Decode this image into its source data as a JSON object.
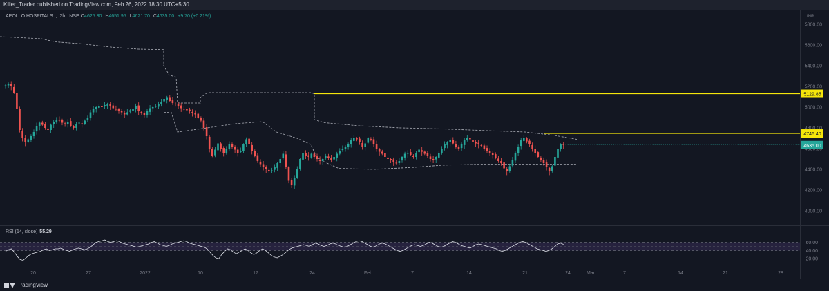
{
  "header": {
    "publisher_line": "Killer_Trader published on TradingView.com, Feb 26, 2022 18:30 UTC+5:30"
  },
  "legend": {
    "symbol": "APOLLO HOSPITALS..",
    "interval": "2h",
    "exchange": "NSE",
    "open_label": "O",
    "open_value": "4625.30",
    "high_label": "H",
    "high_value": "4651.95",
    "low_label": "L",
    "low_value": "4621.70",
    "close_label": "C",
    "close_value": "4635.00",
    "change": "+9.70 (+0.21%)"
  },
  "rsi": {
    "label": "RSI (14, close)",
    "value": "55.29"
  },
  "footer": {
    "brand": "TradingView"
  },
  "colors": {
    "background": "#131722",
    "up": "#26a69a",
    "down": "#ef5350",
    "level_line": "#f5e50b",
    "rsi_band": "#7e57c2",
    "price_tag": "#26a69a"
  },
  "chart_data": [
    {
      "type": "candlestick",
      "title": "APOLLO HOSPITALS.., 2h, NSE",
      "currency": "INR",
      "ylim": [
        3860,
        5940
      ],
      "y_ticks": [
        "4000.00",
        "4200.00",
        "4400.00",
        "4600.00",
        "4800.00",
        "5000.00",
        "5200.00",
        "5400.00",
        "5600.00",
        "5800.00"
      ],
      "x_ticks": [
        "20",
        "27",
        "2022",
        "10",
        "17",
        "24",
        "Feb",
        "7",
        "14",
        "21",
        "24",
        "Mar",
        "7",
        "14",
        "21",
        "28"
      ],
      "price_labels": [
        "5129.85",
        "4746.40",
        "4635.00"
      ],
      "horizontal_levels": [
        {
          "value": 5129.85,
          "label": "5129.85",
          "from": "Jan 25",
          "to": "right edge"
        },
        {
          "value": 4746.4,
          "label": "4746.40",
          "from": "Feb 22",
          "to": "right edge"
        }
      ],
      "last_price": 4635.0,
      "close_series": [
        5210,
        5220,
        5200,
        5140,
        4980,
        4780,
        4700,
        4660,
        4690,
        4720,
        4760,
        4820,
        4850,
        4830,
        4800,
        4780,
        4830,
        4860,
        4880,
        4870,
        4850,
        4840,
        4860,
        4820,
        4800,
        4840,
        4850,
        4840,
        4870,
        4900,
        4950,
        4980,
        5000,
        5010,
        5000,
        5020,
        5030,
        5010,
        4990,
        4980,
        4960,
        4950,
        4930,
        4950,
        4970,
        4980,
        5010,
        4960,
        4940,
        4920,
        4960,
        4990,
        5000,
        5010,
        5030,
        5050,
        5080,
        5090,
        5060,
        5040,
        5030,
        5010,
        4990,
        4980,
        4970,
        4960,
        4940,
        4930,
        4900,
        4870,
        4800,
        4720,
        4600,
        4530,
        4590,
        4650,
        4600,
        4560,
        4600,
        4640,
        4620,
        4590,
        4560,
        4580,
        4640,
        4690,
        4640,
        4580,
        4530,
        4480,
        4450,
        4420,
        4400,
        4380,
        4390,
        4420,
        4460,
        4500,
        4550,
        4420,
        4290,
        4250,
        4320,
        4400,
        4500,
        4560,
        4530,
        4520,
        4550,
        4520,
        4500,
        4480,
        4500,
        4530,
        4510,
        4490,
        4520,
        4550,
        4580,
        4600,
        4620,
        4640,
        4680,
        4700,
        4690,
        4660,
        4620,
        4650,
        4700,
        4690,
        4640,
        4600,
        4570,
        4550,
        4520,
        4500,
        4490,
        4470,
        4460,
        4480,
        4520,
        4550,
        4560,
        4540,
        4520,
        4560,
        4590,
        4570,
        4550,
        4530,
        4500,
        4490,
        4520,
        4560,
        4600,
        4640,
        4660,
        4680,
        4650,
        4620,
        4600,
        4640,
        4680,
        4700,
        4690,
        4660,
        4650,
        4640,
        4630,
        4600,
        4580,
        4560,
        4540,
        4510,
        4480,
        4460,
        4410,
        4380,
        4430,
        4490,
        4560,
        4620,
        4680,
        4700,
        4670,
        4640,
        4600,
        4560,
        4520,
        4490,
        4460,
        4420,
        4380,
        4430,
        4520,
        4600,
        4640,
        4635
      ],
      "upper_envelope": [
        [
          0,
          5680
        ],
        [
          60,
          5660
        ],
        [
          80,
          5630
        ],
        [
          120,
          5610
        ],
        [
          160,
          5580
        ],
        [
          200,
          5560
        ],
        [
          237,
          5555
        ],
        [
          237,
          5400
        ],
        [
          245,
          5310
        ],
        [
          255,
          5290
        ],
        [
          257,
          5040
        ],
        [
          290,
          5040
        ],
        [
          290,
          5090
        ],
        [
          300,
          5140
        ],
        [
          450,
          5140
        ],
        [
          455,
          5130
        ],
        [
          455,
          4880
        ],
        [
          470,
          4850
        ],
        [
          520,
          4820
        ],
        [
          580,
          4800
        ],
        [
          640,
          4790
        ],
        [
          700,
          4775
        ],
        [
          760,
          4760
        ],
        [
          800,
          4730
        ],
        [
          835,
          4690
        ]
      ],
      "lower_envelope": [
        [
          237,
          4950
        ],
        [
          248,
          4950
        ],
        [
          257,
          4760
        ],
        [
          300,
          4800
        ],
        [
          340,
          4840
        ],
        [
          380,
          4860
        ],
        [
          400,
          4760
        ],
        [
          430,
          4700
        ],
        [
          450,
          4640
        ],
        [
          458,
          4520
        ],
        [
          470,
          4470
        ],
        [
          490,
          4410
        ],
        [
          540,
          4400
        ],
        [
          600,
          4420
        ],
        [
          640,
          4440
        ],
        [
          700,
          4450
        ],
        [
          760,
          4450
        ],
        [
          800,
          4450
        ],
        [
          835,
          4450
        ]
      ]
    },
    {
      "type": "line",
      "title": "RSI (14, close)",
      "ylim": [
        0,
        100
      ],
      "y_ticks": [
        "20.00",
        "40.00",
        "60.00"
      ],
      "band": [
        40,
        60
      ],
      "band_midline": 50,
      "last_value": 55.29,
      "series": [
        38,
        42,
        44,
        36,
        26,
        18,
        16,
        22,
        28,
        32,
        34,
        36,
        38,
        42,
        44,
        40,
        42,
        44,
        44,
        46,
        42,
        40,
        38,
        42,
        44,
        46,
        44,
        42,
        44,
        48,
        54,
        60,
        62,
        64,
        66,
        62,
        60,
        62,
        64,
        62,
        58,
        56,
        54,
        52,
        50,
        48,
        50,
        52,
        54,
        56,
        60,
        62,
        58,
        54,
        52,
        50,
        52,
        56,
        58,
        60,
        62,
        64,
        62,
        58,
        56,
        54,
        52,
        50,
        48,
        44,
        36,
        28,
        22,
        20,
        30,
        38,
        44,
        42,
        36,
        32,
        36,
        40,
        44,
        40,
        34,
        30,
        34,
        40,
        44,
        40,
        34,
        28,
        24,
        22,
        26,
        30,
        36,
        42,
        46,
        48,
        50,
        52,
        54,
        52,
        50,
        54,
        58,
        56,
        52,
        50,
        52,
        56,
        58,
        56,
        52,
        50,
        48,
        50,
        54,
        58,
        62,
        64,
        62,
        58,
        54,
        50,
        48,
        52,
        56,
        58,
        56,
        52,
        48,
        44,
        40,
        38,
        40,
        44,
        48,
        52,
        54,
        52,
        50,
        52,
        56,
        60,
        58,
        54,
        50,
        48,
        50,
        54,
        58,
        62,
        60,
        56,
        52,
        50,
        48,
        46,
        50,
        54,
        56,
        54,
        52,
        50,
        48,
        46,
        44,
        40,
        38,
        40,
        44,
        48,
        52,
        56,
        60,
        62,
        60,
        56,
        52,
        48,
        44,
        42,
        40,
        38,
        40,
        44,
        50,
        56,
        58,
        55
      ]
    }
  ]
}
